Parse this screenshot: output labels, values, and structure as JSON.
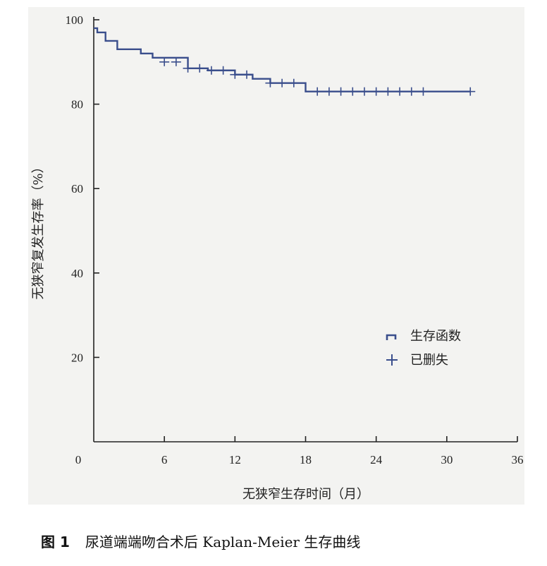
{
  "chart_data": {
    "type": "line",
    "step": true,
    "xlabel": "无狭窄生存时间（月）",
    "ylabel": "无狭窄复发生存率（%）",
    "xlim": [
      0,
      36
    ],
    "ylim": [
      0,
      100
    ],
    "xticks": [
      0,
      6,
      12,
      18,
      24,
      30,
      36
    ],
    "yticks": [
      20,
      40,
      60,
      80,
      100
    ],
    "xtick_labels": [
      "0",
      "6",
      "12",
      "18",
      "24",
      "30",
      "36"
    ],
    "ytick_labels": [
      "20",
      "40",
      "60",
      "80",
      "100"
    ],
    "grid": false,
    "legend_position": "bottom-right",
    "series": [
      {
        "name": "生存函数",
        "color": "#3a4e8c",
        "x": [
          0,
          0.3,
          1.0,
          2.0,
          4.0,
          5.0,
          8.0,
          9.7,
          12.0,
          13.5,
          15.0,
          18.0,
          32.0
        ],
        "y": [
          98,
          97,
          95,
          93,
          92,
          91,
          88.5,
          88,
          87,
          86,
          85,
          83,
          83
        ]
      }
    ],
    "censored": {
      "name": "已删失",
      "color": "#3a4e8c",
      "x": [
        6,
        7,
        8,
        9,
        10,
        11,
        12,
        13,
        15,
        16,
        17,
        19,
        20,
        21,
        22,
        23,
        24,
        25,
        26,
        27,
        28,
        32
      ],
      "y": [
        90,
        90,
        88.5,
        88.5,
        88,
        88,
        87,
        87,
        85,
        85,
        85,
        83,
        83,
        83,
        83,
        83,
        83,
        83,
        83,
        83,
        83,
        83
      ]
    }
  },
  "caption": {
    "label": "图 1",
    "text": "尿道端端吻合术后 Kaplan-Meier 生存曲线"
  }
}
